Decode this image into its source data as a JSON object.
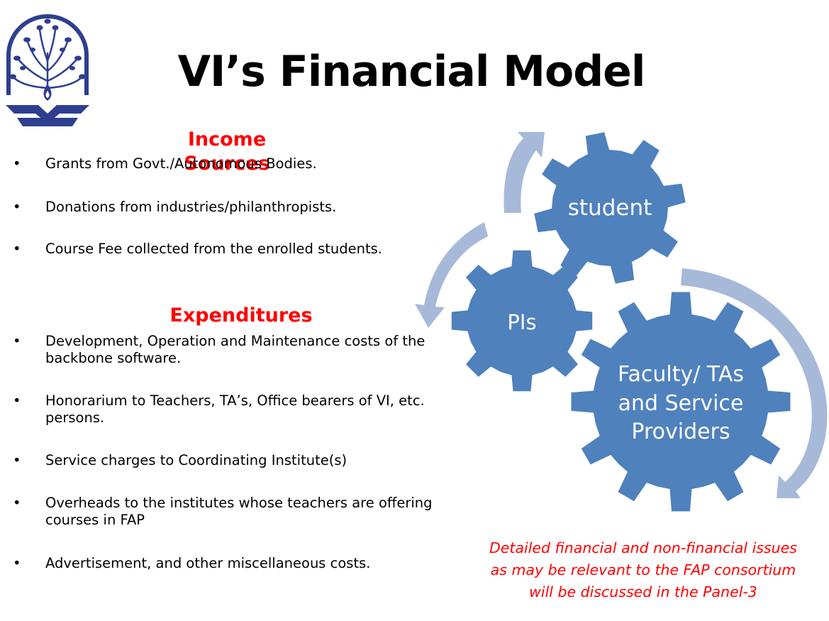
{
  "title": "VI’s Financial Model",
  "income": {
    "heading": "Income Sources",
    "items": [
      "Grants from Govt./Autonomous Bodies.",
      "Donations from industries/philanthropists.",
      "Course Fee collected from the enrolled students."
    ]
  },
  "expenditures": {
    "heading": "Expenditures",
    "items": [
      [
        "Development, Operation and Maintenance costs of the",
        "backbone software."
      ],
      [
        "Honorarium to Teachers, TA’s, Office bearers of VI, etc.",
        "persons."
      ],
      [
        "Service charges to Coordinating Institute(s)"
      ],
      [
        "Overheads to the institutes whose teachers are offering",
        "courses in FAP"
      ],
      [
        "Advertisement, and other miscellaneous costs."
      ]
    ]
  },
  "bullet_symbol": "•",
  "gears": {
    "student": "student",
    "pis": "PIs",
    "faculty": [
      "Faculty/ TAs",
      "and Service",
      "Providers"
    ]
  },
  "note": [
    "Detailed financial and non-financial issues",
    "as may be relevant to the FAP consortium",
    "will be discussed in the Panel-3"
  ],
  "colors": {
    "gear_fill": "#4f81bd",
    "arrow_fill": "#a7b9d9",
    "heading": "#ff0000",
    "note": "#ff0000",
    "logo": "#2e3f8f"
  }
}
